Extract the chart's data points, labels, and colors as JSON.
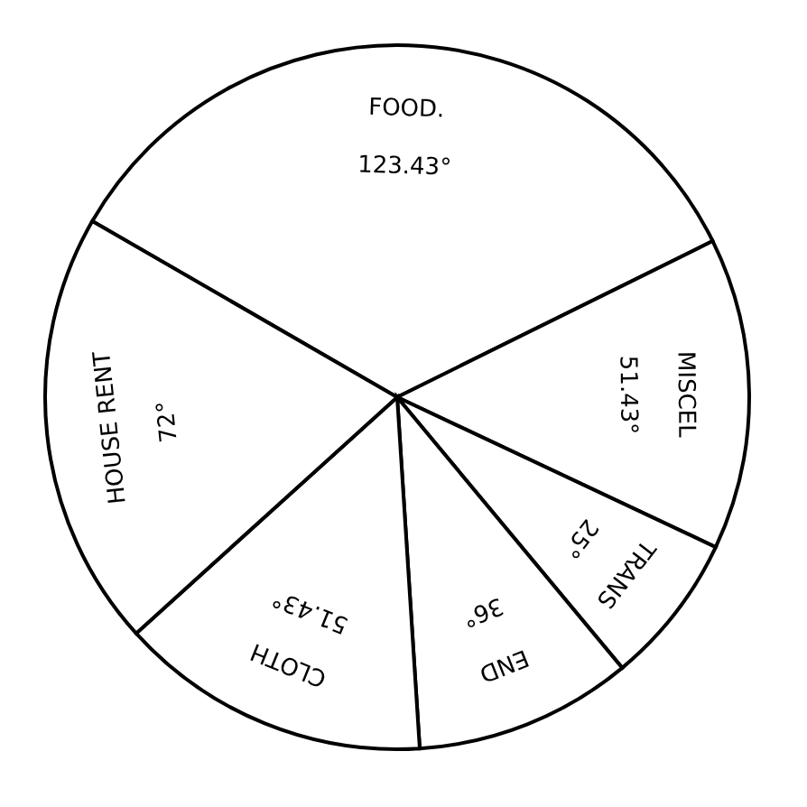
{
  "chart_data": {
    "type": "pie",
    "categories": [
      "FOOD.",
      "MISCEL",
      "TRANS",
      "END",
      "CLOTH",
      "HOUSE RENT"
    ],
    "values": [
      123.43,
      51.43,
      25,
      36,
      51.43,
      72
    ],
    "value_labels": [
      "123.43°",
      "51.43°",
      "25°",
      "36°",
      "51.43°",
      "72°"
    ],
    "colors": [
      "#ffffff",
      "#ffffff",
      "#ffffff",
      "#ffffff",
      "#ffffff",
      "#ffffff"
    ]
  }
}
